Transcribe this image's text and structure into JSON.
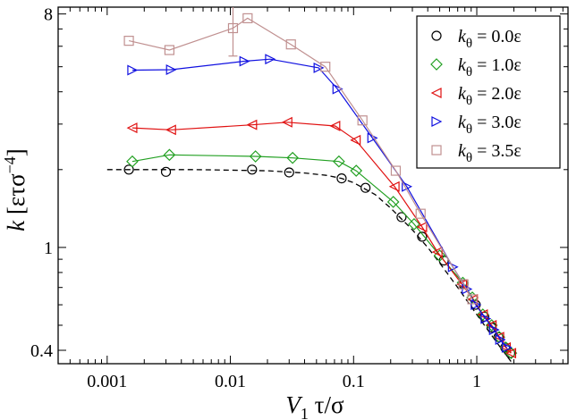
{
  "chart_data": {
    "type": "line",
    "xscale": "log",
    "yscale": "log",
    "xlim": [
      0.0004,
      5.5
    ],
    "ylim": [
      0.355,
      8.5
    ],
    "xticks": [
      {
        "value": 0.001,
        "label": "0.001"
      },
      {
        "value": 0.01,
        "label": "0.01"
      },
      {
        "value": 0.1,
        "label": "0.1"
      },
      {
        "value": 1,
        "label": "1"
      }
    ],
    "yticks": [
      {
        "value": 0.4,
        "label": "0.4"
      },
      {
        "value": 1,
        "label": "1"
      },
      {
        "value": 8,
        "label": "8"
      }
    ],
    "xlabel": {
      "main": "V",
      "sub": "1",
      "rest": " τ/σ"
    },
    "ylabel": {
      "main": "k",
      "unit_open": " [ετσ",
      "sup": "−4",
      "unit_close": "]"
    },
    "legend_position": "top-right",
    "fit_curve": {
      "name": "dashed guide",
      "color": "#000000",
      "x": [
        0.001,
        0.002,
        0.005,
        0.01,
        0.02,
        0.04,
        0.06,
        0.08,
        0.1,
        0.15,
        0.2,
        0.3,
        0.4,
        0.5,
        0.7,
        1.0,
        1.5,
        2.0
      ],
      "y": [
        2.0,
        2.0,
        2.0,
        1.99,
        1.98,
        1.94,
        1.9,
        1.85,
        1.78,
        1.6,
        1.42,
        1.17,
        1.0,
        0.87,
        0.7,
        0.55,
        0.42,
        0.35
      ]
    },
    "series": [
      {
        "name": "k_θ = 0.0ε",
        "label_main": "k",
        "label_sub": "θ",
        "label_rest": " = 0.0ε",
        "color": "#000000",
        "marker": "circle",
        "connect": false,
        "x": [
          0.0015,
          0.003,
          0.015,
          0.03,
          0.08,
          0.125,
          0.245,
          0.36,
          0.54,
          0.78,
          0.98,
          1.15,
          1.32,
          1.5,
          1.7,
          1.87
        ],
        "y": [
          2.0,
          1.96,
          2.0,
          1.95,
          1.85,
          1.7,
          1.31,
          1.1,
          0.89,
          0.72,
          0.6,
          0.54,
          0.49,
          0.45,
          0.41,
          0.39
        ]
      },
      {
        "name": "k_θ = 1.0ε",
        "label_main": "k",
        "label_sub": "θ",
        "label_rest": " = 1.0ε",
        "color": "#22a022",
        "marker": "diamond",
        "connect": true,
        "x": [
          0.0016,
          0.0032,
          0.016,
          0.032,
          0.076,
          0.105,
          0.21,
          0.31,
          0.5,
          0.77,
          0.92,
          1.12,
          1.32,
          1.52,
          1.72,
          1.9
        ],
        "y": [
          2.15,
          2.28,
          2.25,
          2.22,
          2.15,
          1.98,
          1.5,
          1.23,
          0.93,
          0.73,
          0.64,
          0.55,
          0.5,
          0.45,
          0.41,
          0.39
        ]
      },
      {
        "name": "k_θ = 2.0ε",
        "label_main": "k",
        "label_sub": "θ",
        "label_rest": " = 2.0ε",
        "color": "#e01010",
        "marker": "triangle-left",
        "connect": true,
        "x": [
          0.0016,
          0.0033,
          0.015,
          0.029,
          0.071,
          0.104,
          0.215,
          0.36,
          0.48,
          0.76,
          0.93,
          1.12,
          1.32,
          1.52,
          1.72,
          1.9
        ],
        "y": [
          2.9,
          2.85,
          2.98,
          3.05,
          2.95,
          2.6,
          1.72,
          1.2,
          0.96,
          0.72,
          0.63,
          0.55,
          0.5,
          0.45,
          0.41,
          0.39
        ]
      },
      {
        "name": "k_θ = 3.0ε",
        "label_main": "k",
        "label_sub": "θ",
        "label_rest": " = 3.0ε",
        "color": "#1010e0",
        "marker": "triangle-right",
        "connect": true,
        "x": [
          0.0016,
          0.0033,
          0.013,
          0.021,
          0.052,
          0.074,
          0.142,
          0.27,
          0.64,
          0.83,
          0.98,
          1.18,
          1.38,
          1.55,
          1.75
        ],
        "y": [
          4.85,
          4.87,
          5.25,
          5.35,
          4.95,
          4.1,
          2.65,
          1.72,
          0.84,
          0.69,
          0.6,
          0.53,
          0.48,
          0.44,
          0.41
        ]
      },
      {
        "name": "k_θ = 3.5ε",
        "label_main": "k",
        "label_sub": "θ",
        "label_rest": " = 3.5ε",
        "color": "#c09090",
        "marker": "square",
        "connect": true,
        "x": [
          0.0015,
          0.0032,
          0.0105,
          0.0138,
          0.031,
          0.059,
          0.118,
          0.22,
          0.35,
          0.78,
          0.92
        ],
        "y": [
          6.3,
          5.8,
          7.05,
          7.7,
          6.1,
          5.0,
          3.1,
          1.98,
          1.35,
          0.72,
          0.63
        ],
        "error_bars": [
          {
            "index": 2,
            "low": 5.5,
            "high": 8.6
          }
        ]
      }
    ]
  }
}
